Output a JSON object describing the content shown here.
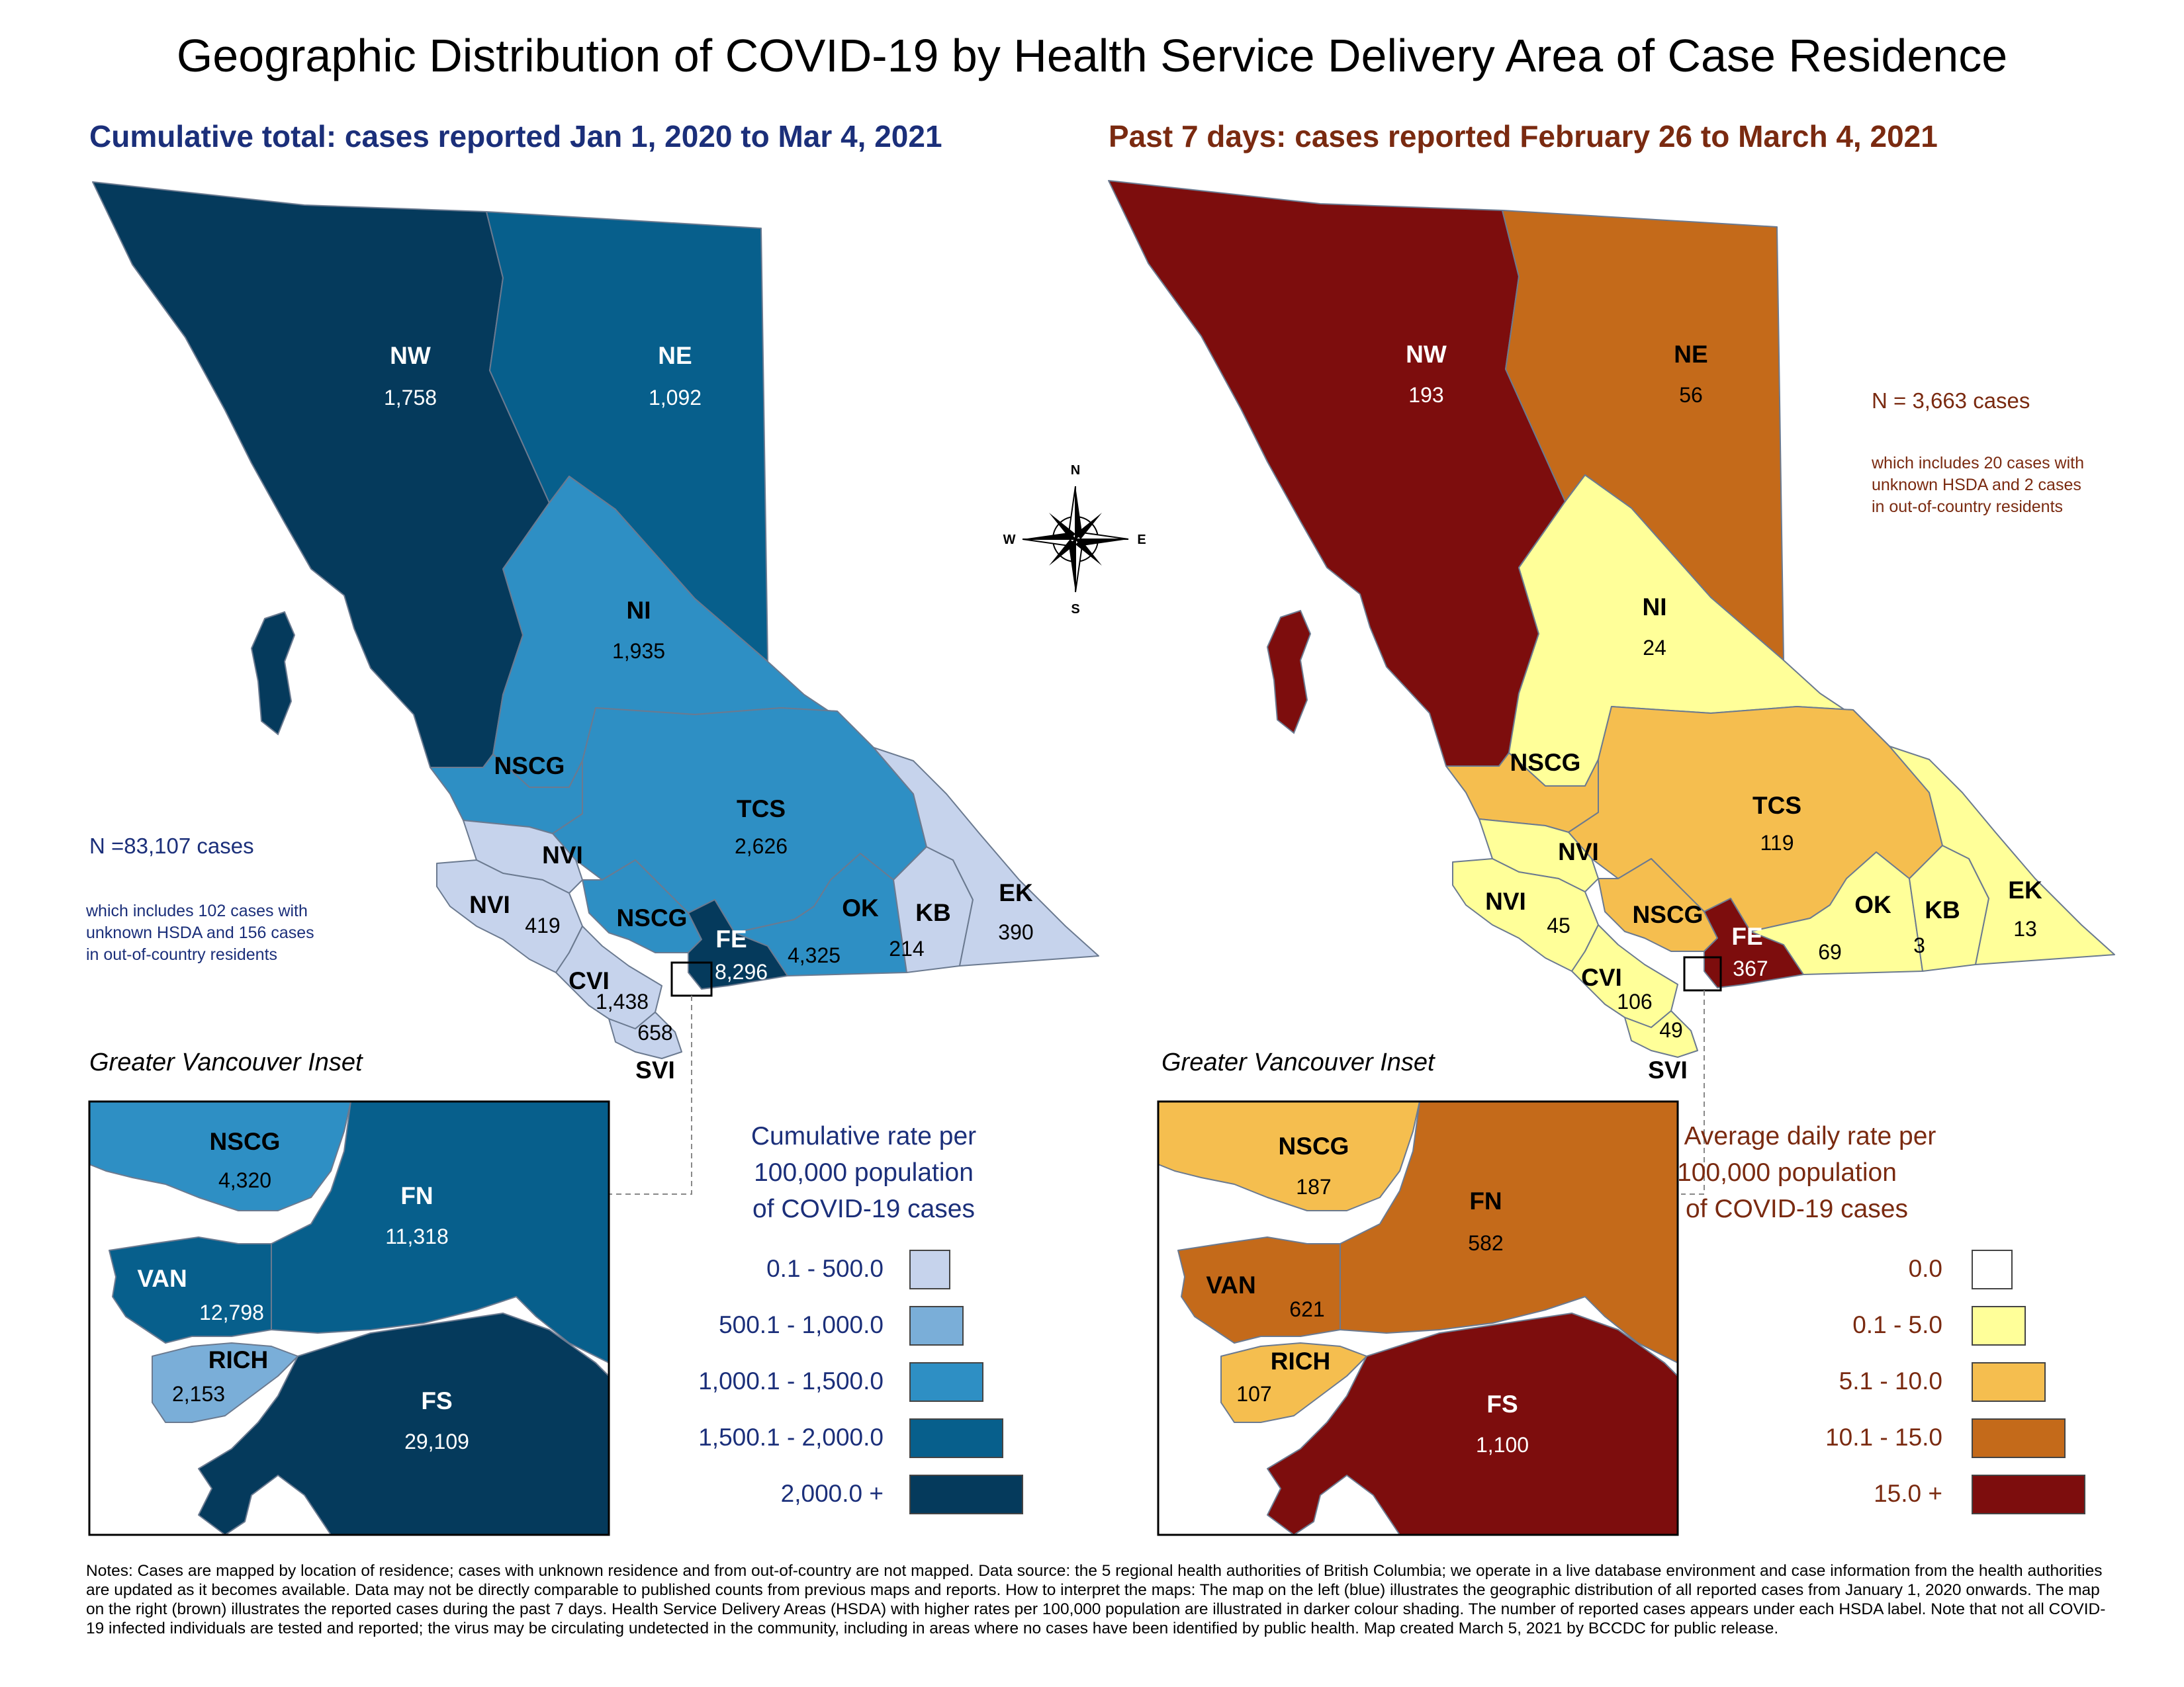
{
  "title": "Geographic Distribution of COVID-19 by Health Service Delivery Area of Case Residence",
  "left_map": {
    "subtitle": "Cumulative total: cases reported Jan 1, 2020 to Mar 4, 2021",
    "n_total": "N =83,107 cases",
    "n_note": [
      "which includes 102 cases with",
      "unknown HSDA and 156 cases",
      "in out-of-country residents"
    ],
    "regions": [
      {
        "code": "NW",
        "value": "1,758",
        "color": "#053a5c"
      },
      {
        "code": "NE",
        "value": "1,092",
        "color": "#075f8c"
      },
      {
        "code": "NI",
        "value": "1,935",
        "color": "#2e8fc4"
      },
      {
        "code": "NSCG",
        "value": "",
        "color": "#2e8fc4"
      },
      {
        "code": "TCS",
        "value": "2,626",
        "color": "#2e8fc4"
      },
      {
        "code": "NVI",
        "value": "",
        "color": "#c6d3ec"
      },
      {
        "code": "NVI",
        "value": "419",
        "color": "#c6d3ec"
      },
      {
        "code": "NSCG",
        "value": "",
        "color": "#2e8fc4"
      },
      {
        "code": "FE",
        "value": "8,296",
        "color": "#053a5c"
      },
      {
        "code": "OK",
        "value": "4,325",
        "color": "#2e8fc4"
      },
      {
        "code": "KB",
        "value": "214",
        "color": "#c6d3ec"
      },
      {
        "code": "EK",
        "value": "390",
        "color": "#c6d3ec"
      },
      {
        "code": "CVI",
        "value": "1,438",
        "color": "#c6d3ec"
      },
      {
        "code": "SVI",
        "value": "658",
        "color": "#c6d3ec"
      }
    ],
    "inset_title": "Greater Vancouver Inset",
    "inset_regions": [
      {
        "code": "NSCG",
        "value": "4,320",
        "color": "#2e8fc4"
      },
      {
        "code": "FN",
        "value": "11,318",
        "color": "#075f8c"
      },
      {
        "code": "VAN",
        "value": "12,798",
        "color": "#075f8c"
      },
      {
        "code": "RICH",
        "value": "2,153",
        "color": "#7aaed8"
      },
      {
        "code": "FS",
        "value": "29,109",
        "color": "#053a5c"
      }
    ],
    "legend_title": [
      "Cumulative rate per",
      "100,000 population",
      "of COVID-19 cases"
    ],
    "legend": [
      {
        "label": "0.1 - 500.0",
        "color": "#c6d3ec"
      },
      {
        "label": "500.1 - 1,000.0",
        "color": "#7aaed8"
      },
      {
        "label": "1,000.1 - 1,500.0",
        "color": "#2e8fc4"
      },
      {
        "label": "1,500.1 - 2,000.0",
        "color": "#075f8c"
      },
      {
        "label": "2,000.0 +",
        "color": "#053a5c"
      }
    ]
  },
  "right_map": {
    "subtitle": "Past 7 days: cases reported February 26 to March 4, 2021",
    "n_total": "N = 3,663 cases",
    "n_note": [
      "which includes 20 cases with",
      "unknown HSDA and 2 cases",
      "in out-of-country residents"
    ],
    "regions": [
      {
        "code": "NW",
        "value": "193",
        "color": "#7d0d0d"
      },
      {
        "code": "NE",
        "value": "56",
        "color": "#c46a1a"
      },
      {
        "code": "NI",
        "value": "24",
        "color": "#ffff99"
      },
      {
        "code": "NSCG",
        "value": "",
        "color": "#f5be4f"
      },
      {
        "code": "TCS",
        "value": "119",
        "color": "#f5be4f"
      },
      {
        "code": "NVI",
        "value": "",
        "color": "#ffff99"
      },
      {
        "code": "NVI",
        "value": "45",
        "color": "#ffff99"
      },
      {
        "code": "NSCG",
        "value": "",
        "color": "#f5be4f"
      },
      {
        "code": "FE",
        "value": "367",
        "color": "#7d0d0d"
      },
      {
        "code": "OK",
        "value": "69",
        "color": "#ffff99"
      },
      {
        "code": "KB",
        "value": "3",
        "color": "#ffff99"
      },
      {
        "code": "EK",
        "value": "13",
        "color": "#ffff99"
      },
      {
        "code": "CVI",
        "value": "106",
        "color": "#ffff99"
      },
      {
        "code": "SVI",
        "value": "49",
        "color": "#ffff99"
      }
    ],
    "inset_title": "Greater Vancouver Inset",
    "inset_regions": [
      {
        "code": "NSCG",
        "value": "187",
        "color": "#f5be4f"
      },
      {
        "code": "FN",
        "value": "582",
        "color": "#c46a1a"
      },
      {
        "code": "VAN",
        "value": "621",
        "color": "#c46a1a"
      },
      {
        "code": "RICH",
        "value": "107",
        "color": "#f5be4f"
      },
      {
        "code": "FS",
        "value": "1,100",
        "color": "#7d0d0d"
      }
    ],
    "legend_title": [
      "Average daily rate per",
      "100,000 population",
      "of COVID-19 cases"
    ],
    "legend": [
      {
        "label": "0.0",
        "color": "#ffffff"
      },
      {
        "label": "0.1 - 5.0",
        "color": "#ffff99"
      },
      {
        "label": "5.1 - 10.0",
        "color": "#f5be4f"
      },
      {
        "label": "10.1 - 15.0",
        "color": "#c46a1a"
      },
      {
        "label": "15.0 +",
        "color": "#7d0d0d"
      }
    ]
  },
  "compass": {
    "n": "N",
    "e": "E",
    "s": "S",
    "w": "W"
  },
  "notes": "Notes: Cases are mapped by location of residence; cases with unknown residence and from out-of-country are not mapped. Data source: the 5 regional health authorities of British Columbia; we operate in a live database environment and case information from the health authorities are updated as it becomes available. Data may not be directly comparable to published counts from previous maps and reports. How to interpret the maps: The map on the left (blue) illustrates the geographic distribution of all reported cases from January 1, 2020 onwards. The map on the right (brown) illustrates the reported cases during the past 7 days. Health Service Delivery Areas (HSDA) with higher rates per 100,000 population are illustrated in darker colour shading. The number of reported cases appears under each HSDA label. Note that not all COVID-19 infected individuals are tested and reported; the virus may be circulating undetected in the community, including in areas where no cases have been identified by public health. Map created March 5, 2021 by BCCDC for public release."
}
